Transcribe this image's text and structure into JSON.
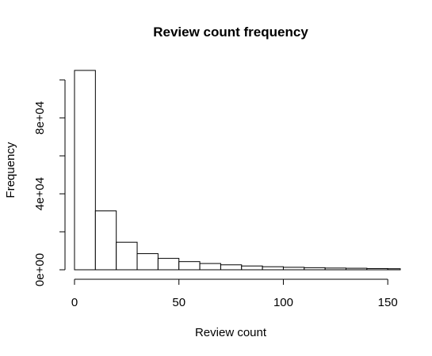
{
  "chart_data": {
    "type": "bar",
    "title": "Review count frequency",
    "xlabel": "Review count",
    "ylabel": "Frequency",
    "bin_width": 10,
    "bins": [
      {
        "start": 0,
        "end": 10,
        "count": 105000
      },
      {
        "start": 10,
        "end": 20,
        "count": 31000
      },
      {
        "start": 20,
        "end": 30,
        "count": 14500
      },
      {
        "start": 30,
        "end": 40,
        "count": 8500
      },
      {
        "start": 40,
        "end": 50,
        "count": 6000
      },
      {
        "start": 50,
        "end": 60,
        "count": 4300
      },
      {
        "start": 60,
        "end": 70,
        "count": 3300
      },
      {
        "start": 70,
        "end": 80,
        "count": 2600
      },
      {
        "start": 80,
        "end": 90,
        "count": 2000
      },
      {
        "start": 90,
        "end": 100,
        "count": 1600
      },
      {
        "start": 100,
        "end": 110,
        "count": 1300
      },
      {
        "start": 110,
        "end": 120,
        "count": 1100
      },
      {
        "start": 120,
        "end": 130,
        "count": 900
      },
      {
        "start": 130,
        "end": 140,
        "count": 800
      },
      {
        "start": 140,
        "end": 150,
        "count": 650
      },
      {
        "start": 150,
        "end": 160,
        "count": 550
      }
    ],
    "xlim": [
      0,
      156
    ],
    "ylim": [
      0,
      105000
    ],
    "x_ticks": [
      0,
      50,
      100,
      150
    ],
    "x_tick_labels": [
      "0",
      "50",
      "100",
      "150"
    ],
    "y_ticks": [
      0,
      20000,
      40000,
      60000,
      80000,
      100000
    ],
    "y_tick_labels": [
      "0e+00",
      "",
      "4e+04",
      "",
      "8e+04",
      ""
    ],
    "grid": false,
    "legend": "none"
  }
}
